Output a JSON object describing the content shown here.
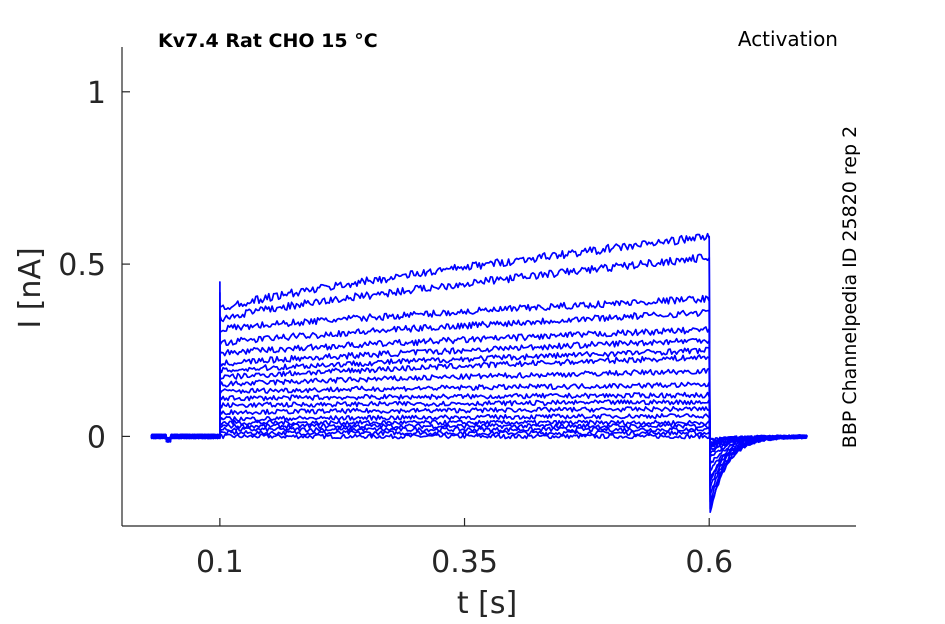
{
  "chart_data": {
    "type": "line",
    "title": "Kv7.4  Rat  CHO  15 °C",
    "protocol": "Activation",
    "side_note": "BBP Channelpedia ID 25820 rep 2",
    "xlabel": "t [s]",
    "ylabel": "I [nA]",
    "xlim": [
      0.0,
      0.75
    ],
    "ylim": [
      -0.26,
      1.13
    ],
    "xticks": [
      0.1,
      0.35,
      0.6
    ],
    "xtick_labels": [
      "0.1",
      "0.35",
      "0.6"
    ],
    "yticks": [
      0,
      0.5,
      1
    ],
    "ytick_labels": [
      "0",
      "0.5",
      "1"
    ],
    "grid": false,
    "line_color": "#0000ff",
    "step_on": 0.1,
    "step_off": 0.6,
    "series": [
      {
        "values": {
          "baseline": 0.0,
          "step_start": 0.0,
          "step_end": 0.0,
          "tail_min": -0.01
        }
      },
      {
        "values": {
          "baseline": 0.0,
          "step_start": 0.01,
          "step_end": 0.01,
          "tail_min": -0.01
        }
      },
      {
        "values": {
          "baseline": 0.0,
          "step_start": 0.02,
          "step_end": 0.02,
          "tail_min": -0.02
        }
      },
      {
        "values": {
          "baseline": 0.0,
          "step_start": 0.03,
          "step_end": 0.03,
          "tail_min": -0.02
        }
      },
      {
        "values": {
          "baseline": 0.0,
          "step_start": 0.04,
          "step_end": 0.04,
          "tail_min": -0.02
        }
      },
      {
        "values": {
          "baseline": 0.0,
          "step_start": 0.05,
          "step_end": 0.06,
          "tail_min": -0.03
        }
      },
      {
        "values": {
          "baseline": 0.0,
          "step_start": 0.07,
          "step_end": 0.08,
          "tail_min": -0.03
        }
      },
      {
        "values": {
          "baseline": 0.0,
          "step_start": 0.09,
          "step_end": 0.1,
          "tail_min": -0.04
        }
      },
      {
        "values": {
          "baseline": 0.0,
          "step_start": 0.11,
          "step_end": 0.12,
          "tail_min": -0.05
        }
      },
      {
        "values": {
          "baseline": 0.0,
          "step_start": 0.13,
          "step_end": 0.15,
          "tail_min": -0.06
        }
      },
      {
        "values": {
          "baseline": 0.0,
          "step_start": 0.15,
          "step_end": 0.19,
          "tail_min": -0.08
        }
      },
      {
        "values": {
          "baseline": 0.0,
          "step_start": 0.17,
          "step_end": 0.23,
          "tail_min": -0.1
        }
      },
      {
        "values": {
          "baseline": 0.0,
          "step_start": 0.19,
          "step_end": 0.25,
          "tail_min": -0.12
        }
      },
      {
        "values": {
          "baseline": 0.0,
          "step_start": 0.21,
          "step_end": 0.28,
          "tail_min": -0.13
        }
      },
      {
        "values": {
          "baseline": 0.0,
          "step_start": 0.24,
          "step_end": 0.31,
          "tail_min": -0.15
        }
      },
      {
        "values": {
          "baseline": 0.0,
          "step_start": 0.27,
          "step_end": 0.36,
          "tail_min": -0.17
        }
      },
      {
        "values": {
          "baseline": 0.0,
          "step_start": 0.31,
          "step_end": 0.4,
          "tail_min": -0.19
        }
      },
      {
        "values": {
          "baseline": 0.0,
          "step_start": 0.34,
          "step_end": 0.52,
          "tail_min": -0.21
        }
      },
      {
        "values": {
          "baseline": 0.0,
          "step_start": 0.37,
          "step_end": 0.58,
          "tail_min": -0.22
        }
      }
    ]
  }
}
